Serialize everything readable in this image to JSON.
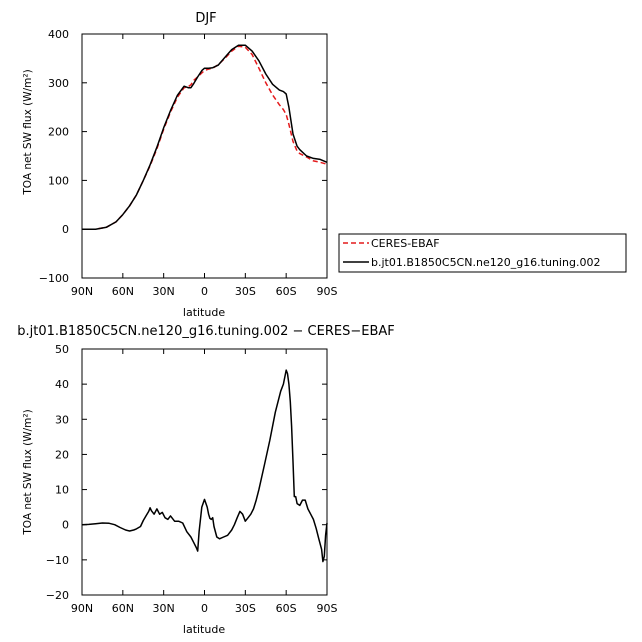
{
  "chart_data": [
    {
      "type": "line",
      "title": "DJF",
      "xlabel": "",
      "ylabel": "TOA net SW flux (W/m²)",
      "xlim": [
        90,
        -90
      ],
      "ylim": [
        -100,
        400
      ],
      "x_ticks": [
        90,
        60,
        30,
        0,
        -30,
        -60,
        -90
      ],
      "x_tick_labels": [
        "90N",
        "60N",
        "30N",
        "0",
        "30S",
        "60S",
        "90S"
      ],
      "y_ticks": [
        -100,
        0,
        100,
        200,
        300,
        400
      ],
      "y_tick_labels": [
        "−100",
        "0",
        "100",
        "200",
        "300",
        "400"
      ],
      "legend": "right-outside",
      "series": [
        {
          "name": "CERES-EBAF",
          "color": "#e41a1c",
          "dash": "dashed",
          "x": [
            90,
            80,
            72,
            65,
            60,
            55,
            50,
            45,
            40,
            35,
            30,
            25,
            20,
            15,
            12,
            10,
            8,
            5,
            2,
            0,
            -3,
            -6,
            -10,
            -15,
            -20,
            -25,
            -30,
            -35,
            -40,
            -45,
            -50,
            -55,
            -58,
            -60,
            -62,
            -65,
            -68,
            -70,
            -75,
            -80,
            -85,
            -90
          ],
          "y": [
            0,
            0,
            4,
            15,
            30,
            48,
            70,
            100,
            130,
            165,
            205,
            240,
            270,
            290,
            292,
            296,
            305,
            312,
            320,
            325,
            328,
            330,
            337,
            350,
            365,
            375,
            373,
            358,
            330,
            300,
            275,
            255,
            245,
            235,
            215,
            180,
            160,
            155,
            148,
            140,
            137,
            133
          ]
        },
        {
          "name": "b.jt01.B1850C5CN.ne120_g16.tuning.002",
          "color": "#000000",
          "dash": "solid",
          "x": [
            90,
            80,
            72,
            65,
            60,
            55,
            50,
            45,
            40,
            35,
            30,
            25,
            20,
            15,
            12,
            10,
            8,
            5,
            2,
            0,
            -3,
            -6,
            -10,
            -15,
            -20,
            -25,
            -30,
            -35,
            -40,
            -45,
            -50,
            -55,
            -58,
            -60,
            -62,
            -65,
            -68,
            -70,
            -75,
            -80,
            -85,
            -90
          ],
          "y": [
            0,
            0,
            4,
            15,
            30,
            48,
            70,
            100,
            132,
            168,
            208,
            243,
            274,
            293,
            290,
            290,
            298,
            312,
            325,
            330,
            330,
            331,
            336,
            352,
            368,
            377,
            377,
            365,
            345,
            318,
            297,
            285,
            282,
            277,
            250,
            195,
            170,
            163,
            150,
            145,
            143,
            137
          ]
        }
      ]
    },
    {
      "type": "line",
      "title": "b.jt01.B1850C5CN.ne120_g16.tuning.002 − CERES−EBAF",
      "xlabel": "latitude",
      "ylabel": "TOA net SW flux (W/m²)",
      "xlim": [
        90,
        -90
      ],
      "ylim": [
        -20,
        50
      ],
      "x_ticks": [
        90,
        60,
        30,
        0,
        -30,
        -60,
        -90
      ],
      "x_tick_labels": [
        "90N",
        "60N",
        "30N",
        "0",
        "30S",
        "60S",
        "90S"
      ],
      "y_ticks": [
        -20,
        -10,
        0,
        10,
        20,
        30,
        40,
        50
      ],
      "y_tick_labels": [
        "−20",
        "−10",
        "0",
        "10",
        "20",
        "30",
        "40",
        "50"
      ],
      "series": [
        {
          "color": "#000000",
          "dash": "solid",
          "x": [
            90,
            85,
            80,
            75,
            70,
            66,
            62,
            58,
            55,
            52,
            50,
            47,
            45,
            43,
            41,
            40,
            39,
            37,
            35,
            33,
            31,
            29,
            27,
            25,
            22,
            19,
            16,
            13,
            10,
            8,
            6,
            5,
            4,
            2,
            0,
            -2,
            -3,
            -4,
            -5,
            -6,
            -7,
            -9,
            -11,
            -14,
            -17,
            -20,
            -22,
            -24,
            -26,
            -28,
            -30,
            -32,
            -34,
            -36,
            -38,
            -40,
            -44,
            -48,
            -52,
            -56,
            -58,
            -60,
            -61,
            -62,
            -63,
            -64,
            -65,
            -66,
            -67,
            -68,
            -70,
            -72,
            -74,
            -76,
            -78,
            -80,
            -82,
            -84,
            -86,
            -87,
            -88,
            -89,
            -90
          ],
          "y": [
            0,
            0.1,
            0.3,
            0.5,
            0.4,
            0,
            -0.8,
            -1.5,
            -1.8,
            -1.5,
            -1.2,
            -0.5,
            1.2,
            2.5,
            3.8,
            4.8,
            4.0,
            3.0,
            4.5,
            3.0,
            3.5,
            2.0,
            1.5,
            2.5,
            1.0,
            1.0,
            0.5,
            -2.0,
            -3.5,
            -5.0,
            -6.5,
            -7.5,
            -2.0,
            5.0,
            7.2,
            5.0,
            3.0,
            1.8,
            1.5,
            2.0,
            -0.5,
            -3.5,
            -4.0,
            -3.5,
            -3.0,
            -1.5,
            0,
            2.0,
            3.8,
            3.0,
            1.0,
            2.0,
            3.0,
            4.5,
            7.0,
            10.0,
            17.0,
            24.0,
            32.0,
            38.0,
            40.0,
            44.0,
            43.0,
            40.0,
            35.0,
            28.0,
            18.0,
            8.0,
            8.0,
            6.0,
            5.5,
            7.0,
            7.0,
            4.5,
            3.0,
            1.5,
            -1.0,
            -4.0,
            -7.0,
            -10.5,
            -9.0,
            -3.0,
            0.5
          ]
        }
      ]
    }
  ]
}
